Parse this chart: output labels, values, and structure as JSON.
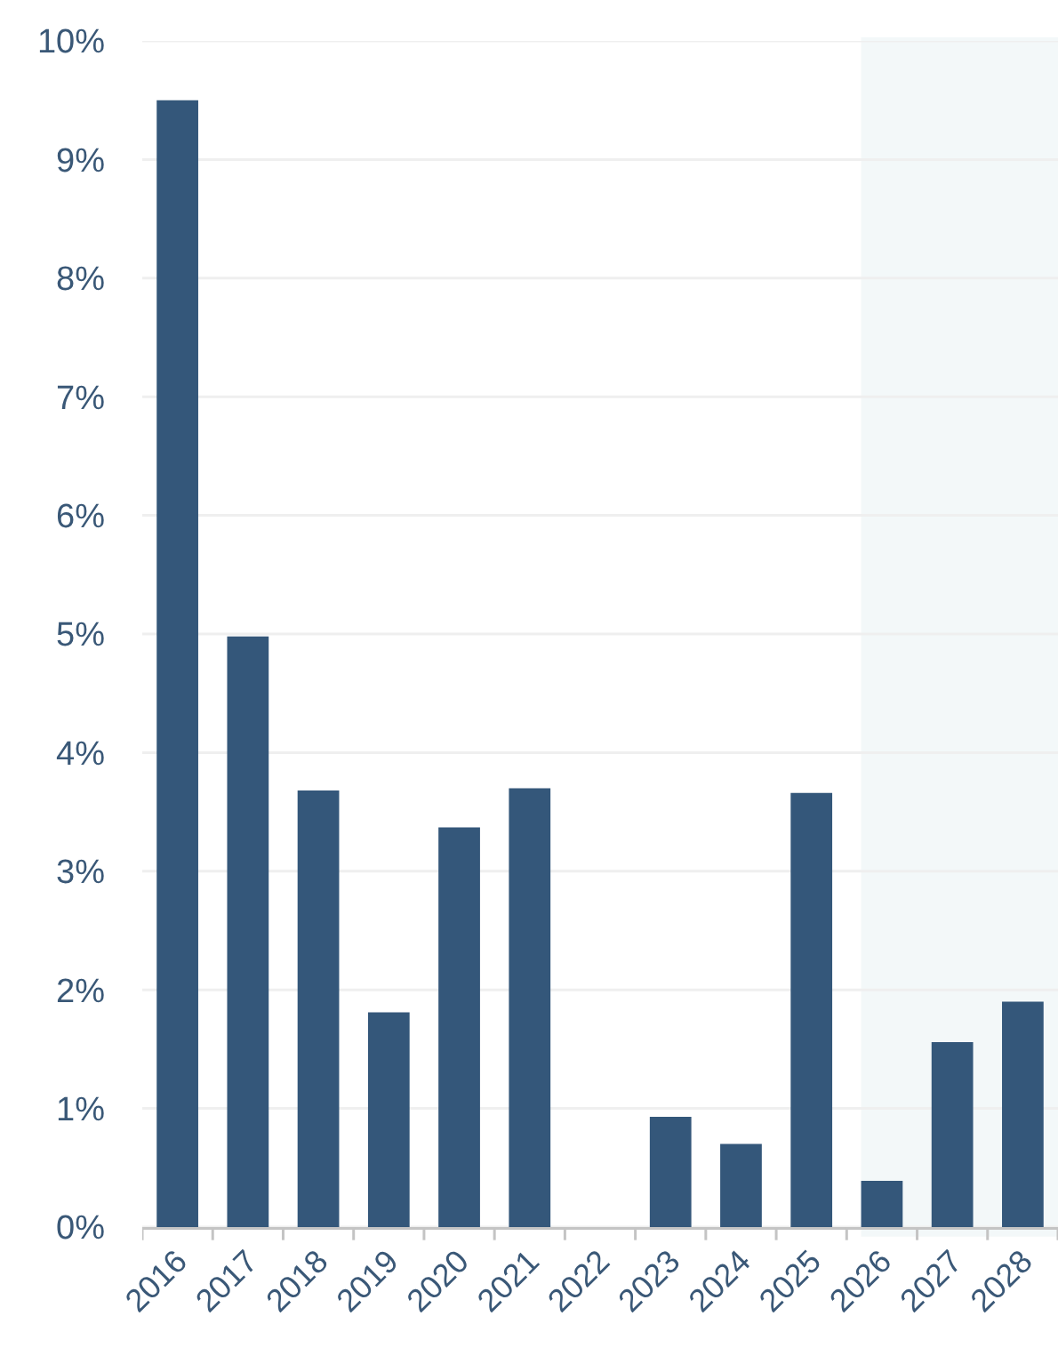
{
  "chart_data": {
    "type": "bar",
    "categories": [
      "2016",
      "2017",
      "2018",
      "2019",
      "2020",
      "2021",
      "2022",
      "2023",
      "2024",
      "2025",
      "2026",
      "2027",
      "2028"
    ],
    "values": [
      9.5,
      4.98,
      3.68,
      1.81,
      3.37,
      3.7,
      null,
      0.93,
      0.7,
      3.66,
      0.39,
      1.56,
      1.9
    ],
    "color": "#34577a",
    "ylim": [
      0,
      10
    ],
    "yticks": [
      {
        "value": 0,
        "label": "0%"
      },
      {
        "value": 1,
        "label": "1%"
      },
      {
        "value": 2,
        "label": "2%"
      },
      {
        "value": 3,
        "label": "3%"
      },
      {
        "value": 4,
        "label": "4%"
      },
      {
        "value": 5,
        "label": "5%"
      },
      {
        "value": 6,
        "label": "6%"
      },
      {
        "value": 7,
        "label": "7%"
      },
      {
        "value": 8,
        "label": "8%"
      },
      {
        "value": 9,
        "label": "9%"
      },
      {
        "value": 10,
        "label": "10%"
      }
    ],
    "grid": "y",
    "bands": [
      {
        "axis": "x",
        "from": "2026",
        "to": "2028",
        "color": "#f3f8f9"
      }
    ]
  }
}
